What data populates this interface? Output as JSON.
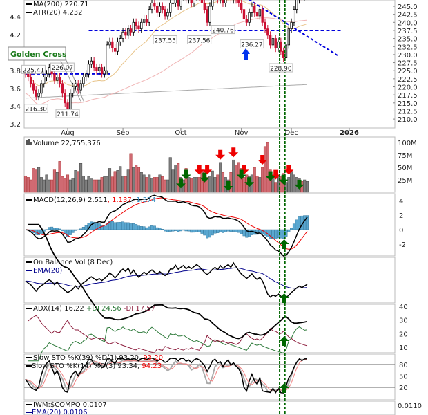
{
  "chart_data": {
    "type": "candlestick",
    "title": "IWM daily",
    "colors": {
      "down": "#cc1133",
      "up": "#000000",
      "ma_short": "#e8c48a",
      "ma_mid": "#f0b4b4",
      "ma200": "#aaaaaa",
      "level": "#0000dd",
      "signal": "#006600",
      "sell": "#ee0000"
    },
    "price_axis": {
      "ticks": [
        245.0,
        242.5,
        240.0,
        237.5,
        235.0,
        232.5,
        230.0,
        227.5,
        225.0,
        222.5,
        220.0,
        217.5,
        215.0,
        212.5,
        210.0
      ],
      "range": [
        208,
        247
      ]
    },
    "atr_axis": {
      "ticks": [
        "4.4",
        "4.2",
        "3.8",
        "3.6",
        "3.4",
        "3.2"
      ]
    },
    "months": [
      {
        "label": "Aug",
        "bar": 16
      },
      {
        "label": "Sep",
        "bar": 37
      },
      {
        "label": "Oct",
        "bar": 59
      },
      {
        "label": "Nov",
        "bar": 82
      },
      {
        "label": "Dec",
        "bar": 101
      },
      {
        "label": "2026",
        "bar": 123
      }
    ],
    "closes": [
      224,
      223,
      221,
      219,
      217,
      218,
      221,
      223,
      224,
      226,
      224,
      222,
      223,
      221,
      218,
      215,
      212,
      218,
      220,
      221,
      219,
      221,
      223,
      224,
      227,
      228,
      226,
      225,
      226,
      224,
      225,
      233,
      234,
      232,
      231,
      234,
      235,
      237,
      236,
      238,
      237,
      240,
      239,
      238,
      240,
      241,
      240,
      244,
      246,
      245,
      243,
      245,
      244,
      242,
      243,
      246,
      246,
      247,
      245,
      248,
      249,
      247,
      248,
      246,
      248,
      249,
      248,
      246,
      244,
      240,
      245,
      248,
      249,
      247,
      248,
      246,
      248,
      249,
      247,
      248,
      247,
      246,
      244,
      241,
      240,
      243,
      245,
      243,
      242,
      244,
      240,
      238,
      236,
      233,
      235,
      232,
      234,
      231,
      229,
      233,
      238,
      240,
      244,
      247,
      249,
      248,
      249,
      250
    ],
    "volume_m": [
      33,
      30,
      25,
      48,
      45,
      50,
      30,
      25,
      35,
      25,
      25,
      45,
      40,
      62,
      32,
      28,
      35,
      25,
      28,
      44,
      42,
      58,
      33,
      25,
      32,
      27,
      25,
      25,
      25,
      30,
      32,
      32,
      48,
      31,
      42,
      44,
      52,
      33,
      32,
      45,
      78,
      50,
      55,
      50,
      40,
      35,
      30,
      35,
      28,
      30,
      30,
      35,
      32,
      25,
      25,
      70,
      45,
      55,
      58,
      30,
      25,
      48,
      30,
      28,
      30,
      30,
      30,
      45,
      42,
      30,
      33,
      43,
      30,
      35,
      60,
      40,
      30,
      25,
      40,
      65,
      55,
      60,
      48,
      30,
      35,
      33,
      35,
      50,
      33,
      30,
      50,
      92,
      100,
      45,
      32,
      20,
      35,
      33,
      38,
      20,
      30,
      42,
      35,
      30,
      28,
      22,
      25,
      22
    ],
    "ma200_range": [
      216.5,
      220.71
    ],
    "price_labels": [
      {
        "text": "225.41",
        "bar": 3,
        "price": 225.4
      },
      {
        "text": "226.07",
        "bar": 14,
        "price": 226.1
      },
      {
        "text": "216.30",
        "bar": 4,
        "price": 216.3
      },
      {
        "text": "211.74",
        "bar": 16,
        "price": 211.7
      },
      {
        "text": "237.55",
        "bar": 53,
        "price": 237.6
      },
      {
        "text": "237.56",
        "bar": 66,
        "price": 237.6
      },
      {
        "text": "240.76",
        "bar": 75,
        "price": 240.8
      },
      {
        "text": "236.27",
        "bar": 86,
        "price": 236.3
      },
      {
        "text": "228.90",
        "bar": 97,
        "price": 228.9
      }
    ],
    "support_levels": [
      {
        "price": 224.0,
        "from_bar": 0,
        "to_bar": 32
      },
      {
        "price": 237.5,
        "from_bar": 24,
        "to_bar": 120
      }
    ],
    "trendline": {
      "from": {
        "bar": 85,
        "price": 247
      },
      "to": {
        "bar": 119,
        "price": 229.5
      }
    },
    "signal_bars": [
      96,
      98
    ],
    "sell_arrows": [
      66,
      69,
      74,
      79,
      83,
      90,
      95,
      100
    ],
    "buy_arrows": [
      59,
      61,
      68,
      77,
      82,
      85,
      93,
      98,
      104
    ],
    "annotation": "Golden Cross",
    "legends": {
      "ma200": "MA(200) 220.71",
      "atr": "ATR(20) 4.232",
      "volume": "Volume 22,755,376",
      "macd": "MACD(12,26,9) 2.511",
      "macd_signal": ", 1.137",
      "macd_hist": ", 1.374",
      "obv": "On Balance Vol (8 Dec)",
      "obv_ema": "EMA(20)",
      "adx": "ADX(14) 16.22",
      "pdi": "+DI 24.56",
      "mdi": "-DI 17.57",
      "sto1": "Slow STO %K(39) %D(1) 93.20,",
      "sto1_d": "93.20",
      "sto2": "Slow STO %K(14) %D(3) 93.34,",
      "sto2_d": "94.23",
      "iwm": "IWM:$COMPQ 0.0107",
      "iwm_ema": "EMA(20) 0.0106"
    },
    "volume_axis": [
      "100M",
      "75M",
      "50M",
      "25M"
    ],
    "macd_axis": [
      "4",
      "2",
      "0",
      "-2"
    ],
    "adx_axis": [
      "40",
      "30",
      "20",
      "10"
    ],
    "sto_axis": [
      "80",
      "50",
      "20"
    ],
    "iwm_axis": [
      "0.0110"
    ]
  }
}
